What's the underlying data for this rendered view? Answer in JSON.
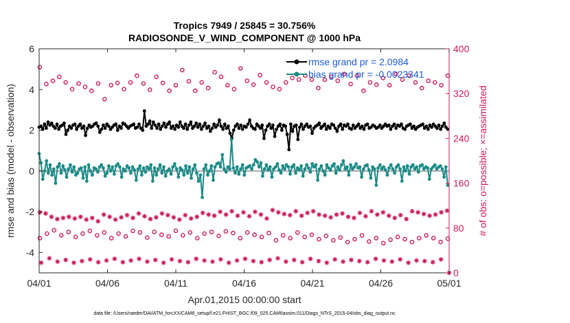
{
  "chart_data": {
    "type": "line",
    "title_line1": "Tropics 7949 / 25845 = 30.756%",
    "title_line2": "RADIOSONDE_V_WIND_COMPONENT @ 1000 hPa",
    "xlabel": "Apr.01,2015 00:00:00 start",
    "ylabel_left": "rmse and bias (model - observation)",
    "ylabel_right": "# of obs: o=possible; ×=assimilated",
    "footer": "data file: /Users/raeder/DAI/ATM_forcXX/CAM6_setup/f.e21.FHIST_BGC.f09_025.CAM6assim.011/Diags_NTrS_2015-04/obs_diag_output.nc",
    "xlim": [
      0,
      30
    ],
    "ylim_left": [
      -5,
      6
    ],
    "ylim_right": [
      0,
      400
    ],
    "left_ticks": [
      "-4",
      "-2",
      "0",
      "2",
      "4",
      "6"
    ],
    "right_ticks": [
      "0",
      "80",
      "160",
      "240",
      "320",
      "400"
    ],
    "x_tick_labels": [
      "04/01",
      "04/06",
      "04/11",
      "04/16",
      "04/21",
      "04/26",
      "05/01"
    ],
    "legend": {
      "rmse_label": "rmse grand pr = 2.0984",
      "bias_label": "bias grand pr = -0.0023341"
    },
    "colors": {
      "rmse": "#000000",
      "bias": "#1a8a86",
      "obs": "#cc1a55",
      "zero_line": "#b4b4b4",
      "legend_text": "#1a5ad6"
    },
    "series": [
      {
        "name": "rmse",
        "axis": "left",
        "values": [
          2.15,
          2.2,
          2.05,
          2.3,
          2.1,
          2.4,
          2.25,
          2.35,
          2.2,
          2.1,
          2.3,
          2.05,
          2.2,
          2.25,
          2.35,
          1.8,
          2.0,
          2.2,
          2.1,
          2.25,
          2.3,
          2.05,
          2.2,
          2.3,
          2.1,
          2.2,
          1.75,
          2.1,
          2.25,
          2.15,
          2.2,
          2.3,
          2.35,
          2.2,
          1.9,
          2.05,
          2.25,
          2.1,
          2.3,
          2.2,
          2.05,
          2.15,
          2.25,
          2.3,
          2.0,
          2.2,
          2.1,
          2.35,
          2.3,
          2.2,
          2.1,
          2.2,
          2.25,
          2.3,
          2.1,
          2.15,
          2.3,
          2.1,
          2.0,
          2.95,
          2.2,
          2.3,
          2.45,
          2.1,
          2.4,
          2.25,
          2.1,
          2.3,
          2.05,
          2.2,
          2.35,
          2.15,
          2.3,
          2.4,
          2.1,
          2.2,
          2.05,
          2.25,
          2.15,
          2.4,
          2.2,
          2.1,
          2.3,
          2.05,
          2.25,
          2.4,
          2.1,
          2.2,
          2.35,
          2.15,
          2.3,
          2.05,
          2.2,
          2.35,
          2.1,
          2.2,
          1.95,
          2.1,
          2.3,
          2.15,
          2.25,
          2.5,
          2.2,
          2.05,
          2.3,
          2.1,
          2.2,
          1.85,
          1.6,
          2.0,
          2.2,
          2.3,
          2.1,
          2.25,
          2.05,
          2.2,
          2.15,
          2.3,
          2.5,
          2.2,
          2.1,
          2.05,
          2.3,
          2.2,
          2.1,
          2.25,
          1.6,
          2.0,
          2.2,
          2.3,
          2.1,
          2.25,
          1.7,
          2.05,
          2.2,
          2.3,
          2.0,
          2.25,
          2.2,
          1.8,
          1.05,
          2.3,
          1.95,
          2.2,
          2.25,
          1.55,
          2.15,
          2.3,
          2.05,
          2.2,
          2.3,
          2.15,
          2.2,
          1.85,
          2.1,
          2.2,
          2.25,
          2.35,
          2.1,
          2.2,
          2.3,
          2.05,
          2.2,
          2.1,
          2.3,
          2.25,
          2.1,
          1.95,
          2.2,
          2.3,
          2.05,
          2.25,
          2.2,
          2.3,
          2.1,
          2.05,
          2.25,
          2.1,
          2.2,
          2.3,
          2.1,
          2.2,
          2.05,
          2.25,
          2.3,
          2.1,
          2.15,
          2.25,
          2.2,
          2.1,
          2.15,
          2.25,
          2.1,
          2.2,
          2.3,
          2.2,
          2.25,
          2.05,
          2.2,
          2.3,
          2.1,
          2.25,
          2.2,
          2.3,
          2.1,
          2.05,
          2.2,
          2.25,
          2.3,
          2.1,
          2.2,
          2.05,
          2.15,
          2.2,
          2.25,
          2.3,
          2.1,
          2.2,
          2.05,
          2.25,
          2.15,
          2.3,
          2.2,
          2.1,
          2.25,
          2.05,
          2.2,
          2.35,
          2.15,
          2.05
        ]
      },
      {
        "name": "bias",
        "axis": "left",
        "values": [
          0.85,
          0.4,
          -0.4,
          0.0,
          0.5,
          -0.1,
          0.3,
          -0.2,
          0.1,
          -0.6,
          0.2,
          0.35,
          -0.1,
          0.25,
          0.05,
          -0.3,
          0.1,
          0.3,
          -0.05,
          0.2,
          -0.2,
          -0.1,
          0.1,
          0.15,
          -0.35,
          0.2,
          -0.5,
          0.3,
          0.0,
          -0.2,
          0.15,
          0.1,
          -0.05,
          0.2,
          0.3,
          0.15,
          -0.25,
          -0.1,
          0.25,
          0.0,
          0.2,
          -0.15,
          0.25,
          0.35,
          0.2,
          -0.3,
          0.1,
          0.0,
          0.25,
          0.15,
          -0.1,
          0.2,
          0.05,
          -0.45,
          0.1,
          0.25,
          -0.2,
          0.15,
          -0.05,
          0.2,
          0.1,
          0.3,
          -0.5,
          0.15,
          -0.2,
          0.1,
          0.3,
          -0.1,
          0.2,
          -0.25,
          0.0,
          0.1,
          -0.15,
          0.2,
          0.35,
          0.1,
          -0.3,
          0.15,
          0.05,
          -0.2,
          0.25,
          -0.1,
          0.2,
          -0.35,
          0.1,
          0.3,
          -0.1,
          -0.5,
          -0.2,
          -1.3,
          0.1,
          0.3,
          -0.2,
          0.0,
          0.25,
          -0.45,
          0.2,
          0.35,
          0.4,
          0.2,
          0.8,
          0.1,
          -0.05,
          0.2,
          0.1,
          1.55,
          0.15,
          -0.1,
          0.2,
          -0.15,
          0.1,
          0.3,
          -0.2,
          0.15,
          0.2,
          0.25,
          0.1,
          0.3,
          0.55,
          0.45,
          0.2,
          0.4,
          -0.25,
          0.1,
          0.3,
          0.05,
          0.2,
          -0.3,
          0.1,
          0.2,
          0.35,
          0.05,
          -0.1,
          0.25,
          0.1,
          0.3,
          0.2,
          -0.15,
          0.2,
          0.3,
          -0.1,
          0.15,
          0.05,
          0.25,
          -0.25,
          0.1,
          0.3,
          0.15,
          -0.05,
          0.35,
          0.2,
          0.3,
          -0.45,
          0.1,
          0.25,
          0.0,
          -0.2,
          0.3,
          0.15,
          0.05,
          0.25,
          0.35,
          -0.1,
          0.2,
          0.05,
          0.3,
          0.5,
          0.1,
          0.2,
          -0.2,
          0.3,
          0.1,
          0.2,
          0.35,
          0.15,
          0.2,
          -0.3,
          0.1,
          0.25,
          0.3,
          0.05,
          -0.35,
          0.2,
          0.1,
          -0.7,
          0.15,
          0.3,
          0.1,
          0.2,
          0.05,
          -0.2,
          0.15,
          0.3,
          0.1,
          -0.1,
          0.2,
          0.3,
          0.1,
          -0.5,
          0.2,
          0.0,
          0.25,
          -0.15,
          0.2,
          0.3,
          0.1,
          0.2,
          -0.05,
          0.25,
          0.3,
          0.1,
          0.2,
          0.15,
          -0.4,
          0.1,
          0.2,
          0.3,
          0.1,
          0.2,
          0.25,
          0.1,
          -0.3,
          0.2,
          -0.7
        ]
      },
      {
        "name": "possible_upper",
        "axis": "right",
        "values": [
          367,
          337,
          343,
          350,
          340,
          328,
          338,
          332,
          325,
          338,
          310,
          335,
          339,
          328,
          340,
          352,
          338,
          327,
          350,
          339,
          325,
          335,
          362,
          342,
          325,
          340,
          330,
          358,
          350,
          335,
          328,
          365,
          343,
          336,
          353,
          340,
          332,
          328,
          340,
          348,
          345,
          352,
          345,
          330,
          345,
          350,
          343,
          355,
          337,
          352,
          325,
          340,
          336,
          348,
          335,
          355,
          345,
          352,
          340,
          330,
          343,
          340,
          335,
          352
        ]
      },
      {
        "name": "possible_lower",
        "axis": "right",
        "values": [
          62,
          70,
          76,
          67,
          73,
          64,
          70,
          75,
          67,
          72,
          62,
          70,
          65,
          75,
          72,
          63,
          73,
          68,
          65,
          75,
          67,
          72,
          62,
          70,
          73,
          66,
          74,
          71,
          62,
          72,
          68,
          64,
          71,
          58,
          67,
          62,
          72,
          64,
          68,
          60,
          66,
          58,
          63,
          55,
          60,
          67,
          56,
          62,
          53,
          59,
          64,
          60,
          55,
          62,
          67,
          62,
          55,
          61
        ]
      },
      {
        "name": "assimilated_upper",
        "axis": "right",
        "values": [
          108,
          106,
          100,
          96,
          98,
          100,
          97,
          100,
          95,
          98,
          92,
          104,
          100,
          95,
          99,
          103,
          98,
          106,
          101,
          96,
          99,
          106,
          103,
          99,
          95,
          103,
          97,
          100,
          107,
          104,
          102,
          109,
          104,
          110,
          102,
          108,
          101,
          109,
          104,
          97,
          112,
          108,
          105,
          103,
          110,
          102,
          107,
          110,
          104,
          102,
          99,
          104,
          106,
          100,
          98,
          107,
          101,
          110,
          104,
          108,
          102,
          98,
          103,
          96,
          110,
          108,
          105,
          102,
          104,
          108,
          111
        ]
      },
      {
        "name": "assimilated_lower",
        "axis": "right",
        "values": [
          18,
          26,
          20,
          23,
          18,
          21,
          24,
          19,
          22,
          25,
          19,
          22,
          25,
          20,
          23,
          18,
          24,
          21,
          19,
          25,
          22,
          20,
          24,
          18,
          22,
          25,
          21,
          19,
          23,
          26,
          20,
          23,
          19,
          25,
          21,
          18,
          24,
          20,
          23,
          21,
          19,
          25,
          22,
          20,
          24,
          18,
          22,
          21,
          19,
          24,
          0
        ]
      }
    ]
  }
}
